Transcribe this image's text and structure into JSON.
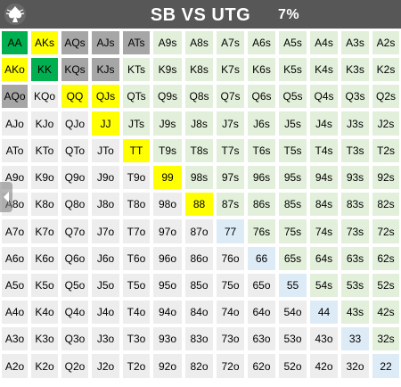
{
  "header": {
    "title": "SB VS UTG",
    "percent": "7%",
    "logo_icon": "spade-logo-icon"
  },
  "nav": {
    "icon": "chevron-left-icon"
  },
  "colors": {
    "raise": "#00b050",
    "call": "#ffff00",
    "mixed": "#a6a6a6",
    "suited_fold": "#e2efda",
    "offsuit_fold": "#ededed",
    "pair_fold": "#ddebf7"
  },
  "grid": {
    "rows": [
      [
        "AA",
        "AKs",
        "AQs",
        "AJs",
        "ATs",
        "A9s",
        "A8s",
        "A7s",
        "A6s",
        "A5s",
        "A4s",
        "A3s",
        "A2s"
      ],
      [
        "AKo",
        "KK",
        "KQs",
        "KJs",
        "KTs",
        "K9s",
        "K8s",
        "K7s",
        "K6s",
        "K5s",
        "K4s",
        "K3s",
        "K2s"
      ],
      [
        "AQo",
        "KQo",
        "QQ",
        "QJs",
        "QTs",
        "Q9s",
        "Q8s",
        "Q7s",
        "Q6s",
        "Q5s",
        "Q4s",
        "Q3s",
        "Q2s"
      ],
      [
        "AJo",
        "KJo",
        "QJo",
        "JJ",
        "JTs",
        "J9s",
        "J8s",
        "J7s",
        "J6s",
        "J5s",
        "J4s",
        "J3s",
        "J2s"
      ],
      [
        "ATo",
        "KTo",
        "QTo",
        "JTo",
        "TT",
        "T9s",
        "T8s",
        "T7s",
        "T6s",
        "T5s",
        "T4s",
        "T3s",
        "T2s"
      ],
      [
        "A9o",
        "K9o",
        "Q9o",
        "J9o",
        "T9o",
        "99",
        "98s",
        "97s",
        "96s",
        "95s",
        "94s",
        "93s",
        "92s"
      ],
      [
        "A8o",
        "K8o",
        "Q8o",
        "J8o",
        "T8o",
        "98o",
        "88",
        "87s",
        "86s",
        "85s",
        "84s",
        "83s",
        "82s"
      ],
      [
        "A7o",
        "K7o",
        "Q7o",
        "J7o",
        "T7o",
        "97o",
        "87o",
        "77",
        "76s",
        "75s",
        "74s",
        "73s",
        "72s"
      ],
      [
        "A6o",
        "K6o",
        "Q6o",
        "J6o",
        "T6o",
        "96o",
        "86o",
        "76o",
        "66",
        "65s",
        "64s",
        "63s",
        "62s"
      ],
      [
        "A5o",
        "K5o",
        "Q5o",
        "J5o",
        "T5o",
        "95o",
        "85o",
        "75o",
        "65o",
        "55",
        "54s",
        "53s",
        "52s"
      ],
      [
        "A4o",
        "K4o",
        "Q4o",
        "J4o",
        "T4o",
        "94o",
        "84o",
        "74o",
        "64o",
        "54o",
        "44",
        "43s",
        "42s"
      ],
      [
        "A3o",
        "K3o",
        "Q3o",
        "J3o",
        "T3o",
        "93o",
        "83o",
        "73o",
        "63o",
        "53o",
        "43o",
        "33",
        "32s"
      ],
      [
        "A2o",
        "K2o",
        "Q2o",
        "J2o",
        "T2o",
        "92o",
        "82o",
        "72o",
        "62o",
        "52o",
        "42o",
        "32o",
        "22"
      ]
    ],
    "actions": [
      [
        "raise",
        "call",
        "mixed",
        "mixed",
        "mixed",
        "",
        "",
        "",
        "",
        "",
        "",
        "",
        ""
      ],
      [
        "call",
        "raise",
        "mixed",
        "mixed",
        "",
        "",
        "",
        "",
        "",
        "",
        "",
        "",
        ""
      ],
      [
        "mixed",
        "",
        "call",
        "call",
        "",
        "",
        "",
        "",
        "",
        "",
        "",
        "",
        ""
      ],
      [
        "",
        "",
        "",
        "call",
        "",
        "",
        "",
        "",
        "",
        "",
        "",
        "",
        ""
      ],
      [
        "",
        "",
        "",
        "",
        "call",
        "",
        "",
        "",
        "",
        "",
        "",
        "",
        ""
      ],
      [
        "",
        "",
        "",
        "",
        "",
        "call",
        "",
        "",
        "",
        "",
        "",
        "",
        ""
      ],
      [
        "",
        "",
        "",
        "",
        "",
        "",
        "call",
        "",
        "",
        "",
        "",
        "",
        ""
      ],
      [
        "",
        "",
        "",
        "",
        "",
        "",
        "",
        "",
        "",
        "",
        "",
        "",
        ""
      ],
      [
        "",
        "",
        "",
        "",
        "",
        "",
        "",
        "",
        "",
        "",
        "",
        "",
        ""
      ],
      [
        "",
        "",
        "",
        "",
        "",
        "",
        "",
        "",
        "",
        "",
        "",
        "",
        ""
      ],
      [
        "",
        "",
        "",
        "",
        "",
        "",
        "",
        "",
        "",
        "",
        "",
        "",
        ""
      ],
      [
        "",
        "",
        "",
        "",
        "",
        "",
        "",
        "",
        "",
        "",
        "",
        "",
        ""
      ],
      [
        "",
        "",
        "",
        "",
        "",
        "",
        "",
        "",
        "",
        "",
        "",
        "",
        ""
      ]
    ]
  }
}
